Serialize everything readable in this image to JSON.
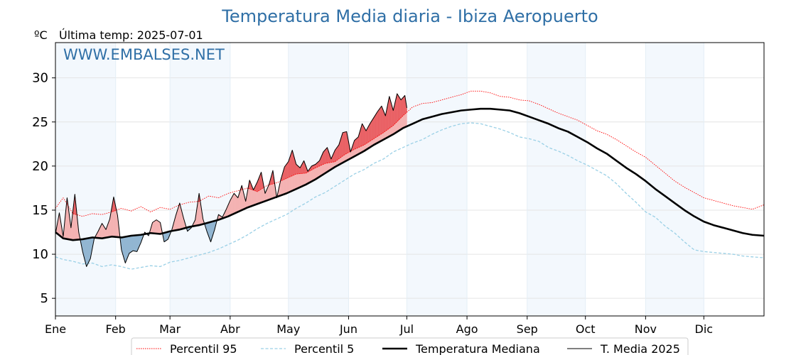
{
  "chart_data": {
    "type": "line",
    "title": "Temperatura Media diaria - Ibiza Aeropuerto",
    "unit_label": "ºC",
    "last_temp_label": "Última temp: 2025-07-01",
    "watermark": "WWW.EMBALSES.NET",
    "xlabel": "",
    "ylabel": "",
    "ylim": [
      3,
      34
    ],
    "yticks": [
      5,
      10,
      15,
      20,
      25,
      30
    ],
    "xlim": [
      1,
      366
    ],
    "grid": true,
    "legend_position": "bottom",
    "months": [
      {
        "label": "Ene",
        "day": 1
      },
      {
        "label": "Feb",
        "day": 32
      },
      {
        "label": "Mar",
        "day": 60
      },
      {
        "label": "Abr",
        "day": 91
      },
      {
        "label": "May",
        "day": 121
      },
      {
        "label": "Jun",
        "day": 152
      },
      {
        "label": "Jul",
        "day": 182
      },
      {
        "label": "Ago",
        "day": 213
      },
      {
        "label": "Sep",
        "day": 244
      },
      {
        "label": "Oct",
        "day": 274
      },
      {
        "label": "Nov",
        "day": 305
      },
      {
        "label": "Dic",
        "day": 335
      }
    ],
    "shaded_month_bands": [
      [
        1,
        32
      ],
      [
        60,
        91
      ],
      [
        121,
        152
      ],
      [
        182,
        213
      ],
      [
        244,
        274
      ],
      [
        305,
        335
      ]
    ],
    "series": [
      {
        "name": "Percentil 95",
        "color": "#ff0000",
        "style": "dotted",
        "x": [
          1,
          5,
          10,
          15,
          20,
          25,
          30,
          35,
          40,
          45,
          50,
          55,
          60,
          65,
          70,
          75,
          80,
          85,
          90,
          95,
          100,
          105,
          110,
          115,
          120,
          125,
          130,
          135,
          140,
          145,
          150,
          155,
          160,
          165,
          170,
          175,
          180,
          185,
          190,
          195,
          200,
          205,
          210,
          215,
          220,
          225,
          230,
          235,
          240,
          245,
          250,
          255,
          260,
          265,
          270,
          275,
          280,
          285,
          290,
          295,
          300,
          305,
          310,
          315,
          320,
          325,
          330,
          335,
          340,
          345,
          350,
          355,
          360,
          366
        ],
        "values": [
          15.2,
          16.4,
          14.6,
          14.3,
          14.6,
          14.5,
          14.8,
          15.2,
          14.9,
          15.4,
          14.8,
          15.3,
          15.1,
          15.6,
          15.9,
          16.0,
          16.6,
          16.4,
          16.9,
          17.2,
          17.5,
          17.1,
          17.8,
          18.1,
          18.6,
          19.1,
          19.2,
          19.8,
          20.3,
          20.5,
          21.3,
          21.9,
          22.4,
          23.1,
          23.8,
          24.6,
          25.7,
          26.7,
          27.1,
          27.2,
          27.5,
          27.8,
          28.1,
          28.5,
          28.5,
          28.3,
          27.9,
          27.8,
          27.5,
          27.4,
          27.0,
          26.5,
          26.0,
          25.6,
          25.2,
          24.6,
          24.0,
          23.6,
          23.0,
          22.3,
          21.6,
          21.0,
          20.1,
          19.2,
          18.3,
          17.6,
          17.0,
          16.4,
          16.1,
          15.8,
          15.5,
          15.3,
          15.1,
          15.6
        ]
      },
      {
        "name": "Percentil 5",
        "color": "#9ad0e6",
        "style": "dashed",
        "x": [
          1,
          5,
          10,
          15,
          20,
          25,
          30,
          35,
          40,
          45,
          50,
          55,
          60,
          65,
          70,
          75,
          80,
          85,
          90,
          95,
          100,
          105,
          110,
          115,
          120,
          125,
          130,
          135,
          140,
          145,
          150,
          155,
          160,
          165,
          170,
          175,
          180,
          185,
          190,
          195,
          200,
          205,
          210,
          215,
          220,
          225,
          230,
          235,
          240,
          245,
          250,
          255,
          260,
          265,
          270,
          275,
          280,
          285,
          290,
          295,
          300,
          305,
          310,
          315,
          320,
          325,
          330,
          335,
          340,
          345,
          350,
          355,
          360,
          366
        ],
        "values": [
          9.7,
          9.4,
          9.2,
          8.9,
          9.0,
          8.6,
          8.8,
          8.6,
          8.3,
          8.5,
          8.7,
          8.6,
          9.1,
          9.3,
          9.6,
          9.9,
          10.2,
          10.6,
          11.1,
          11.6,
          12.2,
          12.9,
          13.5,
          14.0,
          14.5,
          15.2,
          15.8,
          16.5,
          17.0,
          17.7,
          18.4,
          19.1,
          19.6,
          20.3,
          20.8,
          21.6,
          22.1,
          22.6,
          23.0,
          23.6,
          24.1,
          24.5,
          24.8,
          24.9,
          24.8,
          24.5,
          24.2,
          23.8,
          23.3,
          23.1,
          22.8,
          22.1,
          21.7,
          21.2,
          20.6,
          20.1,
          19.5,
          18.9,
          18.0,
          16.9,
          15.9,
          14.8,
          14.2,
          13.2,
          12.4,
          11.4,
          10.5,
          10.3,
          10.2,
          10.1,
          10.0,
          9.8,
          9.7,
          9.6
        ]
      },
      {
        "name": "Temperatura Mediana",
        "color": "#000000",
        "style": "solid-thick",
        "x": [
          1,
          5,
          10,
          15,
          20,
          25,
          30,
          35,
          40,
          45,
          50,
          55,
          60,
          65,
          70,
          75,
          80,
          85,
          90,
          95,
          100,
          105,
          110,
          115,
          120,
          125,
          130,
          135,
          140,
          145,
          150,
          155,
          160,
          165,
          170,
          175,
          180,
          185,
          190,
          195,
          200,
          205,
          210,
          215,
          220,
          225,
          230,
          235,
          240,
          245,
          250,
          255,
          260,
          265,
          270,
          275,
          280,
          285,
          290,
          295,
          300,
          305,
          310,
          315,
          320,
          325,
          330,
          335,
          340,
          345,
          350,
          355,
          360,
          366
        ],
        "values": [
          12.5,
          11.8,
          11.6,
          11.7,
          11.9,
          11.8,
          12.0,
          11.9,
          12.1,
          12.2,
          12.4,
          12.3,
          12.6,
          12.8,
          13.1,
          13.3,
          13.6,
          13.9,
          14.3,
          14.8,
          15.3,
          15.7,
          16.1,
          16.5,
          16.9,
          17.4,
          17.9,
          18.5,
          19.2,
          19.9,
          20.5,
          21.1,
          21.7,
          22.4,
          23.0,
          23.6,
          24.3,
          24.8,
          25.3,
          25.6,
          25.9,
          26.1,
          26.3,
          26.4,
          26.5,
          26.5,
          26.4,
          26.3,
          26.0,
          25.6,
          25.2,
          24.8,
          24.3,
          23.9,
          23.3,
          22.7,
          22.0,
          21.4,
          20.6,
          19.8,
          19.1,
          18.3,
          17.4,
          16.6,
          15.8,
          15.0,
          14.3,
          13.7,
          13.3,
          13.0,
          12.7,
          12.4,
          12.2,
          12.1
        ]
      },
      {
        "name": "T. Media 2025",
        "color": "#000000",
        "style": "solid-thin",
        "x": [
          1,
          3,
          5,
          7,
          9,
          11,
          13,
          15,
          17,
          19,
          21,
          23,
          25,
          27,
          29,
          31,
          33,
          35,
          37,
          39,
          41,
          43,
          45,
          47,
          49,
          51,
          53,
          55,
          57,
          59,
          61,
          63,
          65,
          67,
          69,
          71,
          73,
          75,
          77,
          79,
          81,
          83,
          85,
          87,
          89,
          91,
          93,
          95,
          97,
          99,
          101,
          103,
          105,
          107,
          109,
          111,
          113,
          115,
          117,
          119,
          121,
          123,
          125,
          127,
          129,
          131,
          133,
          135,
          137,
          139,
          141,
          143,
          145,
          147,
          149,
          151,
          153,
          155,
          157,
          159,
          161,
          163,
          165,
          167,
          169,
          171,
          173,
          175,
          177,
          179,
          181,
          182
        ],
        "values": [
          12.3,
          14.7,
          12.0,
          16.4,
          13.0,
          16.8,
          12.5,
          10.3,
          8.6,
          9.5,
          11.8,
          12.6,
          13.5,
          12.8,
          14.0,
          16.5,
          14.4,
          10.5,
          9.0,
          10.1,
          10.4,
          10.3,
          11.3,
          12.5,
          12.1,
          13.6,
          13.9,
          13.6,
          11.4,
          11.7,
          12.8,
          14.4,
          15.8,
          14.1,
          12.6,
          13.0,
          13.9,
          16.9,
          14.0,
          12.6,
          11.4,
          12.8,
          14.5,
          14.2,
          15.1,
          16.1,
          16.9,
          16.4,
          17.8,
          16.0,
          18.4,
          17.3,
          18.2,
          19.3,
          16.9,
          17.9,
          19.5,
          16.4,
          18.4,
          19.9,
          20.5,
          21.8,
          20.2,
          19.8,
          20.6,
          19.4,
          20.0,
          20.2,
          20.6,
          21.6,
          22.1,
          20.8,
          21.8,
          22.4,
          23.8,
          23.9,
          21.6,
          22.9,
          23.3,
          24.8,
          24.0,
          24.8,
          25.5,
          26.2,
          26.8,
          25.7,
          27.9,
          26.3,
          28.2,
          27.5,
          28.0,
          26.6
        ]
      }
    ],
    "legend": [
      "Percentil 95",
      "Percentil 5",
      "Temperatura Mediana",
      "T. Media 2025"
    ]
  }
}
